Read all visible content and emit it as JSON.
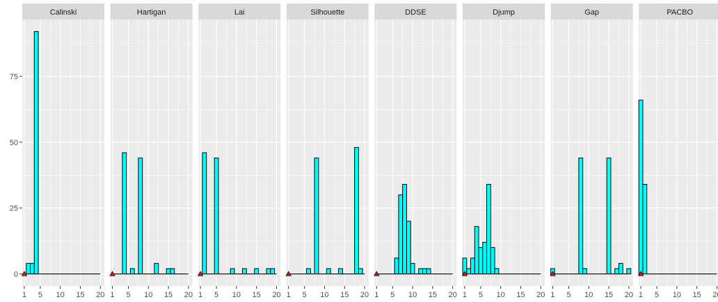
{
  "chart_data": {
    "type": "bar",
    "layout": "facet_wrap",
    "xlim": [
      0.5,
      21
    ],
    "x_ticks": [
      1,
      5,
      10,
      15,
      20
    ],
    "ylim": [
      -4.6,
      96.6
    ],
    "y_ticks": [
      0,
      25,
      50,
      75
    ],
    "grid": true,
    "bar_fill": "#00FFFF",
    "bar_stroke": "#000000",
    "marker_fill": "#E31A1C",
    "panel_bg": "#EBEBEB",
    "strip_bg": "#D9D9D9",
    "panels": [
      {
        "title": "Calinski",
        "x": [
          1,
          2,
          3,
          4
        ],
        "values": [
          0,
          4,
          4,
          92
        ],
        "marker_x": 1
      },
      {
        "title": "Hartigan",
        "x": [
          4,
          6,
          8,
          12,
          15,
          16
        ],
        "values": [
          46,
          2,
          44,
          4,
          2,
          2
        ],
        "marker_x": 1
      },
      {
        "title": "Lai",
        "x": [
          2,
          5,
          9,
          12,
          15,
          18,
          19
        ],
        "values": [
          46,
          44,
          2,
          2,
          2,
          2,
          2
        ],
        "marker_x": 1
      },
      {
        "title": "Silhouette",
        "x": [
          6,
          8,
          11,
          14,
          18,
          19
        ],
        "values": [
          2,
          44,
          2,
          2,
          48,
          2
        ],
        "marker_x": 1
      },
      {
        "title": "DDSE",
        "x": [
          6,
          7,
          8,
          9,
          10,
          12,
          13,
          14
        ],
        "values": [
          6,
          30,
          34,
          20,
          4,
          2,
          2,
          2
        ],
        "marker_x": 1
      },
      {
        "title": "Djump",
        "x": [
          1,
          2,
          3,
          4,
          5,
          6,
          7,
          8,
          9
        ],
        "values": [
          6,
          2,
          6,
          18,
          10,
          12,
          34,
          10,
          2
        ],
        "marker_x": 1
      },
      {
        "title": "Gap",
        "x": [
          1,
          8,
          9,
          15,
          17,
          18,
          20
        ],
        "values": [
          2,
          44,
          2,
          44,
          2,
          4,
          2
        ],
        "marker_x": 1
      },
      {
        "title": "PACBO",
        "x": [
          1,
          2
        ],
        "values": [
          66,
          34
        ],
        "marker_x": 1
      }
    ]
  }
}
